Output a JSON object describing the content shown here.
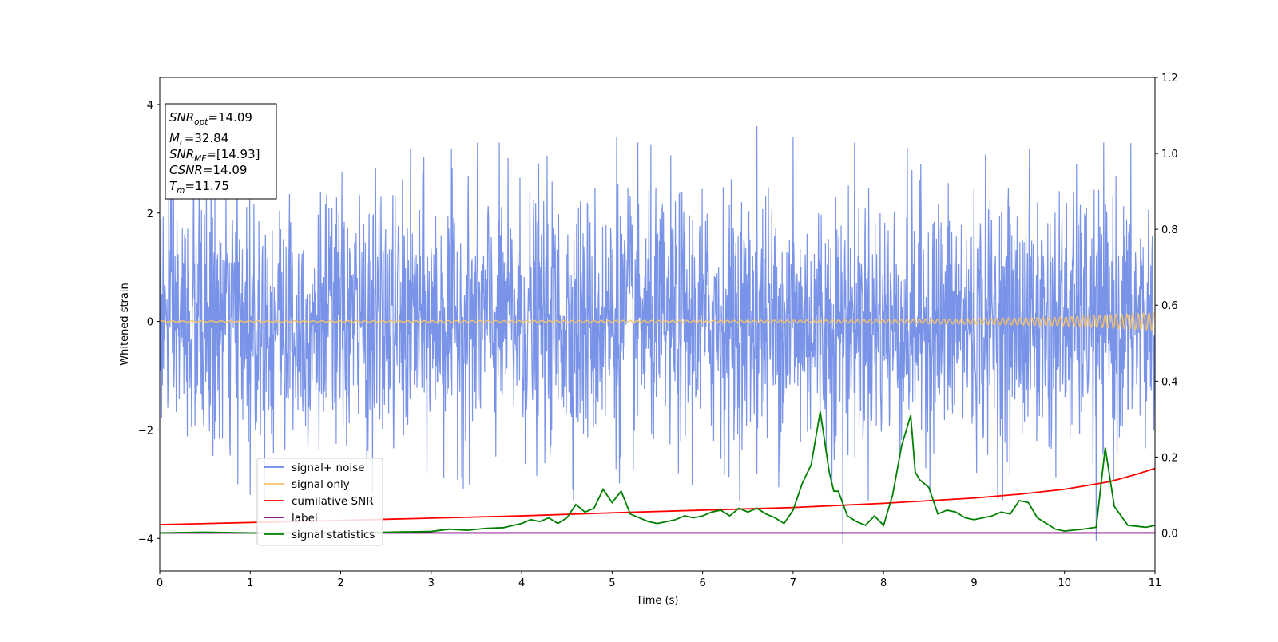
{
  "chart_data": {
    "type": "line",
    "title": "",
    "xlabel": "Time (s)",
    "ylabel": "Whitened strain",
    "y2label": "",
    "xlim": [
      0,
      11
    ],
    "ylim": [
      -4.6,
      4.5
    ],
    "y2lim": [
      -0.1,
      1.2
    ],
    "xticks": [
      "0",
      "1",
      "2",
      "3",
      "4",
      "5",
      "6",
      "7",
      "8",
      "9",
      "10",
      "11"
    ],
    "yticks": [
      "−4",
      "−2",
      "0",
      "2",
      "4"
    ],
    "y2ticks": [
      "0.0",
      "0.2",
      "0.4",
      "0.6",
      "0.8",
      "1.0",
      "1.2"
    ],
    "grid": false,
    "legend_position": "lower-left",
    "colors": {
      "signal_noise": "#6a87e6",
      "signal_only": "#f5c26b",
      "cumulative_snr": "#ff0000",
      "label": "#800080",
      "signal_statistics": "#008000"
    },
    "series": [
      {
        "name": "signal+ noise",
        "axis": "left",
        "description_level": "dense noise, approx. ±1.5 typical, peaks ±3.7",
        "x_range": [
          0,
          11
        ],
        "amplitude_typical": 1.5,
        "peak_positive": [
          3.4,
          3.6,
          3.4
        ],
        "peak_negative": [
          -4.1,
          -4.05,
          -3.2
        ]
      },
      {
        "name": "signal only",
        "axis": "left",
        "type": "chirp",
        "x": [
          0,
          6,
          8,
          9,
          10,
          10.5,
          11
        ],
        "envelope": [
          0.01,
          0.02,
          0.03,
          0.05,
          0.08,
          0.12,
          0.16
        ]
      },
      {
        "name": "cumilative SNR",
        "axis": "right",
        "x": [
          0,
          2,
          4,
          5,
          6,
          7,
          8,
          9,
          9.5,
          10,
          10.5,
          10.8,
          11
        ],
        "y": [
          0.022,
          0.033,
          0.045,
          0.053,
          0.06,
          0.067,
          0.078,
          0.092,
          0.102,
          0.115,
          0.135,
          0.155,
          0.17
        ]
      },
      {
        "name": "label",
        "axis": "right",
        "x": [
          0,
          11
        ],
        "y": [
          0.0,
          0.0
        ]
      },
      {
        "name": "signal statistics",
        "axis": "right",
        "x": [
          0,
          0.5,
          1,
          1.5,
          2,
          2.5,
          3,
          3.2,
          3.4,
          3.6,
          3.8,
          4.0,
          4.1,
          4.2,
          4.3,
          4.4,
          4.5,
          4.6,
          4.7,
          4.8,
          4.9,
          5.0,
          5.1,
          5.2,
          5.3,
          5.4,
          5.5,
          5.6,
          5.7,
          5.8,
          5.9,
          6.0,
          6.1,
          6.2,
          6.3,
          6.4,
          6.5,
          6.6,
          6.7,
          6.8,
          6.9,
          7.0,
          7.1,
          7.2,
          7.3,
          7.4,
          7.45,
          7.5,
          7.6,
          7.7,
          7.8,
          7.9,
          8.0,
          8.1,
          8.2,
          8.3,
          8.35,
          8.4,
          8.5,
          8.6,
          8.7,
          8.8,
          8.9,
          9.0,
          9.1,
          9.2,
          9.3,
          9.4,
          9.5,
          9.6,
          9.7,
          9.8,
          9.9,
          10.0,
          10.2,
          10.35,
          10.45,
          10.55,
          10.7,
          10.9,
          11.0
        ],
        "y": [
          0.0,
          0.002,
          0.0,
          0.0,
          0.001,
          0.002,
          0.004,
          0.01,
          0.007,
          0.012,
          0.014,
          0.025,
          0.035,
          0.03,
          0.04,
          0.025,
          0.04,
          0.075,
          0.055,
          0.065,
          0.115,
          0.08,
          0.11,
          0.05,
          0.04,
          0.03,
          0.025,
          0.03,
          0.035,
          0.045,
          0.04,
          0.045,
          0.055,
          0.06,
          0.045,
          0.065,
          0.055,
          0.065,
          0.05,
          0.04,
          0.025,
          0.06,
          0.13,
          0.18,
          0.32,
          0.16,
          0.11,
          0.11,
          0.045,
          0.03,
          0.02,
          0.045,
          0.02,
          0.1,
          0.23,
          0.31,
          0.16,
          0.14,
          0.12,
          0.05,
          0.06,
          0.055,
          0.04,
          0.035,
          0.04,
          0.045,
          0.055,
          0.05,
          0.085,
          0.08,
          0.04,
          0.025,
          0.01,
          0.005,
          0.01,
          0.015,
          0.225,
          0.07,
          0.02,
          0.015,
          0.02
        ]
      }
    ],
    "legend": [
      "signal+ noise",
      "signal only",
      "cumilative SNR",
      "label",
      "signal statistics"
    ],
    "info_box": {
      "snr_opt": {
        "base": "SNR",
        "sub": "opt",
        "value": "=14.09"
      },
      "mc": {
        "base": "M",
        "sub": "c",
        "value": "=32.84"
      },
      "snr_mf": {
        "base": "SNR",
        "sub": "MF",
        "value": "=[14.93]"
      },
      "csnr": {
        "base": "CSNR",
        "value": "=14.09"
      },
      "tm": {
        "base": "T",
        "sub": "m",
        "value": "=11.75"
      }
    }
  }
}
